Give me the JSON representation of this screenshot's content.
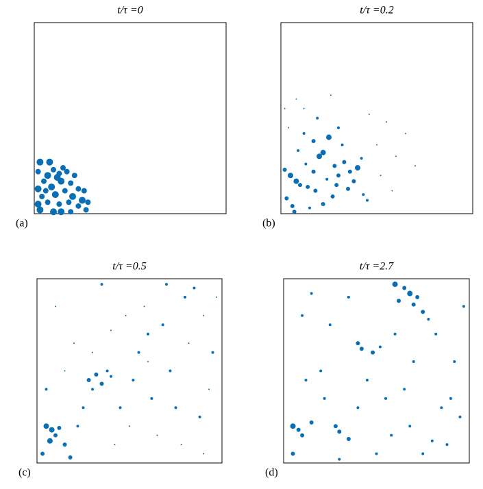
{
  "chart_data": [
    {
      "type": "scatter",
      "title": "t/τ =0",
      "panel_label": "(a)",
      "color": "#0a6eb4",
      "xlim": [
        0,
        1
      ],
      "ylim": [
        0,
        1
      ],
      "x": [
        0.03,
        0.08,
        0.02,
        0.1,
        0.15,
        0.17,
        0.07,
        0.12,
        0.05,
        0.14,
        0.19,
        0.02,
        0.09,
        0.16,
        0.23,
        0.26,
        0.04,
        0.11,
        0.2,
        0.25,
        0.28,
        0.02,
        0.07,
        0.13,
        0.18,
        0.23,
        0.03,
        0.1,
        0.14,
        0.19,
        0.27,
        0.06,
        0.13,
        0.21
      ],
      "y": [
        0.27,
        0.27,
        0.22,
        0.23,
        0.24,
        0.22,
        0.2,
        0.19,
        0.17,
        0.17,
        0.16,
        0.13,
        0.14,
        0.12,
        0.13,
        0.12,
        0.09,
        0.1,
        0.09,
        0.07,
        0.06,
        0.05,
        0.06,
        0.05,
        0.06,
        0.04,
        0.02,
        0.01,
        0.01,
        0.01,
        0.02,
        0.12,
        0.21,
        0.2
      ],
      "sizes": [
        5,
        5,
        4,
        4,
        4,
        4,
        5,
        5,
        4,
        5,
        4,
        5,
        5,
        4,
        4,
        4,
        4,
        5,
        5,
        5,
        4,
        5,
        4,
        4,
        4,
        4,
        5,
        5,
        5,
        4,
        4,
        4,
        4,
        4
      ]
    },
    {
      "type": "scatter",
      "title": "t/τ =0.2",
      "panel_label": "(b)",
      "color": "#0a6eb4",
      "xlim": [
        0,
        1
      ],
      "ylim": [
        0,
        1
      ],
      "x": [
        0.02,
        0.05,
        0.08,
        0.1,
        0.14,
        0.18,
        0.2,
        0.22,
        0.17,
        0.12,
        0.25,
        0.28,
        0.3,
        0.33,
        0.36,
        0.4,
        0.38,
        0.27,
        0.22,
        0.15,
        0.06,
        0.03,
        0.09,
        0.12,
        0.19,
        0.3,
        0.35,
        0.42,
        0.45,
        0.5,
        0.55,
        0.6,
        0.08,
        0.04,
        0.24,
        0.32,
        0.46,
        0.52,
        0.65,
        0.7,
        0.13,
        0.26,
        0.43,
        0.02,
        0.07,
        0.17,
        0.29,
        0.58
      ],
      "y": [
        0.23,
        0.2,
        0.17,
        0.15,
        0.14,
        0.12,
        0.3,
        0.32,
        0.38,
        0.42,
        0.4,
        0.25,
        0.2,
        0.27,
        0.22,
        0.24,
        0.17,
        0.09,
        0.05,
        0.03,
        0.04,
        0.08,
        0.33,
        0.55,
        0.5,
        0.45,
        0.13,
        0.29,
        0.07,
        0.36,
        0.48,
        0.3,
        0.6,
        0.45,
        0.18,
        0.36,
        0.52,
        0.2,
        0.42,
        0.25,
        0.26,
        0.62,
        0.1,
        0.55,
        0.01,
        0.22,
        0.15,
        0.12
      ],
      "sizes": [
        3,
        4,
        4,
        3,
        3,
        3,
        4,
        4,
        3,
        2,
        4,
        3,
        3,
        3,
        3,
        4,
        3,
        3,
        3,
        2,
        3,
        3,
        2,
        1,
        2,
        2,
        3,
        2,
        2,
        1,
        1,
        1,
        1,
        1,
        2,
        2,
        1,
        1,
        1,
        1,
        2,
        1,
        2,
        1,
        3,
        3,
        3,
        1
      ]
    },
    {
      "type": "scatter",
      "title": "t/τ =0.5",
      "panel_label": "(c)",
      "color": "#0a6eb4",
      "xlim": [
        0,
        1
      ],
      "ylim": [
        0,
        1
      ],
      "x": [
        0.05,
        0.08,
        0.1,
        0.12,
        0.07,
        0.15,
        0.03,
        0.18,
        0.28,
        0.32,
        0.35,
        0.38,
        0.3,
        0.4,
        0.45,
        0.55,
        0.6,
        0.68,
        0.72,
        0.8,
        0.85,
        0.9,
        0.95,
        0.62,
        0.5,
        0.42,
        0.25,
        0.2,
        0.1,
        0.7,
        0.78,
        0.88,
        0.93,
        0.58,
        0.35,
        0.15,
        0.48,
        0.65,
        0.82,
        0.97,
        0.22,
        0.4,
        0.6,
        0.75,
        0.9,
        0.05,
        0.3,
        0.52
      ],
      "y": [
        0.2,
        0.18,
        0.15,
        0.19,
        0.12,
        0.1,
        0.05,
        0.03,
        0.45,
        0.48,
        0.43,
        0.5,
        0.4,
        0.47,
        0.3,
        0.6,
        0.7,
        0.75,
        0.5,
        0.9,
        0.95,
        0.8,
        0.6,
        0.35,
        0.2,
        0.1,
        0.3,
        0.65,
        0.85,
        0.97,
        0.1,
        0.25,
        0.4,
        0.85,
        0.97,
        0.5,
        0.8,
        0.15,
        0.65,
        0.9,
        0.2,
        0.72,
        0.55,
        0.3,
        0.05,
        0.4,
        0.6,
        0.45
      ],
      "sizes": [
        4,
        4,
        3,
        3,
        4,
        3,
        3,
        3,
        3,
        3,
        3,
        2,
        2,
        2,
        2,
        2,
        2,
        2,
        2,
        2,
        2,
        1,
        2,
        2,
        1,
        1,
        2,
        1,
        1,
        2,
        1,
        2,
        1,
        1,
        2,
        1,
        1,
        1,
        1,
        1,
        2,
        1,
        1,
        2,
        1,
        2,
        1,
        2
      ]
    },
    {
      "type": "scatter",
      "title": "t/τ =2.7",
      "panel_label": "(d)",
      "color": "#0a6eb4",
      "xlim": [
        0,
        1
      ],
      "ylim": [
        0,
        1
      ],
      "x": [
        0.6,
        0.65,
        0.68,
        0.72,
        0.7,
        0.75,
        0.62,
        0.78,
        0.05,
        0.08,
        0.1,
        0.15,
        0.28,
        0.3,
        0.35,
        0.4,
        0.42,
        0.48,
        0.52,
        0.45,
        0.55,
        0.2,
        0.25,
        0.85,
        0.9,
        0.95,
        0.88,
        0.8,
        0.58,
        0.65,
        0.7,
        0.1,
        0.15,
        0.35,
        0.5,
        0.75,
        0.92,
        0.05,
        0.22,
        0.6,
        0.82,
        0.97,
        0.3,
        0.12,
        0.4,
        0.68
      ],
      "y": [
        0.97,
        0.95,
        0.92,
        0.9,
        0.86,
        0.82,
        0.88,
        0.78,
        0.2,
        0.18,
        0.15,
        0.22,
        0.2,
        0.17,
        0.13,
        0.65,
        0.62,
        0.6,
        0.63,
        0.45,
        0.35,
        0.5,
        0.75,
        0.3,
        0.35,
        0.25,
        0.1,
        0.12,
        0.15,
        0.4,
        0.55,
        0.8,
        0.92,
        0.9,
        0.05,
        0.05,
        0.55,
        0.05,
        0.35,
        0.7,
        0.7,
        0.85,
        0.02,
        0.45,
        0.3,
        0.2
      ],
      "sizes": [
        4,
        3,
        4,
        3,
        3,
        3,
        3,
        2,
        4,
        3,
        3,
        3,
        3,
        3,
        3,
        3,
        3,
        3,
        2,
        2,
        2,
        2,
        2,
        2,
        2,
        2,
        2,
        2,
        2,
        2,
        2,
        2,
        2,
        2,
        2,
        2,
        2,
        3,
        2,
        2,
        2,
        2,
        2,
        2,
        2,
        2
      ]
    }
  ]
}
